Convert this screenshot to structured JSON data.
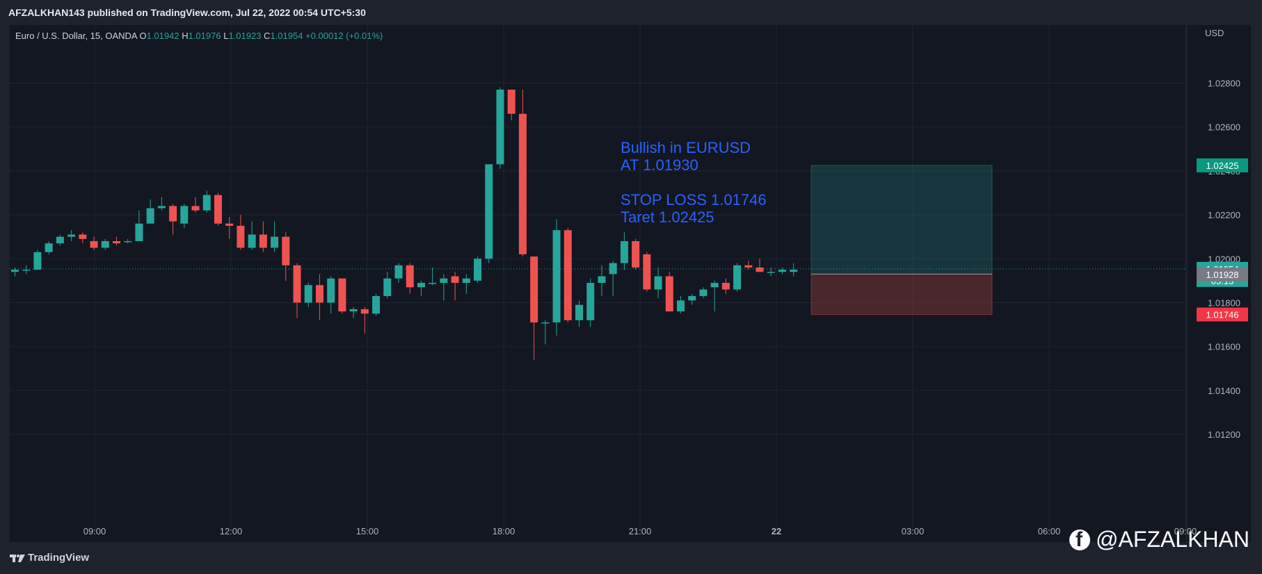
{
  "header": {
    "publisher": "AFZALKHAN143 published on TradingView.com, Jul 22, 2022 00:54 UTC+5:30"
  },
  "footer": {
    "brand": "TradingView"
  },
  "watermark": {
    "handle": "@AFZALKHAN"
  },
  "legend": {
    "symbol": "Euro / U.S. Dollar, 15, OANDA",
    "o_label": "O",
    "o_value": "1.01942",
    "h_label": "H",
    "h_value": "1.01976",
    "l_label": "L",
    "l_value": "1.01923",
    "c_label": "C",
    "c_value": "1.01954",
    "change": "+0.00012 (+0.01%)"
  },
  "annotation": [
    "Bullish in EURUSD",
    "AT 1.01930",
    "",
    "STOP LOSS 1.01746",
    "Taret 1.02425"
  ],
  "badges": [
    {
      "text": "1.02425",
      "price": 1.02425,
      "color": "#089981"
    },
    {
      "text": "1.01954",
      "sub": "05:13",
      "price": 1.01954,
      "color": "#26a69a"
    },
    {
      "text": "1.01928",
      "price": 1.01928,
      "color": "#787b86"
    },
    {
      "text": "1.01746",
      "price": 1.01746,
      "color": "#f23645"
    }
  ],
  "colors": {
    "up": "#26a69a",
    "down": "#ef5350",
    "grid": "#1f2430",
    "text": "#b2b5be",
    "annotation": "#2962ff"
  },
  "chart_data": {
    "type": "candlestick",
    "title": "Euro / U.S. Dollar, 15, OANDA",
    "currency": "USD",
    "ylim": [
      1.0108,
      1.0295
    ],
    "yticks": [
      "1.02800",
      "1.02600",
      "1.02400",
      "1.02200",
      "1.02000",
      "1.01800",
      "1.01600",
      "1.01400",
      "1.01200"
    ],
    "xticks": [
      "09:00",
      "12:00",
      "15:00",
      "18:00",
      "21:00",
      "22",
      "03:00",
      "06:00",
      "09:00"
    ],
    "position": {
      "entry": 1.0193,
      "stop": 1.01746,
      "target": 1.02425
    },
    "last_price": 1.01954,
    "candles": [
      [
        1.0194,
        1.0196,
        1.0192,
        1.0195
      ],
      [
        1.0195,
        1.0197,
        1.0193,
        1.0195
      ],
      [
        1.0195,
        1.0204,
        1.0195,
        1.0203
      ],
      [
        1.0203,
        1.0208,
        1.0202,
        1.0207
      ],
      [
        1.0207,
        1.0211,
        1.0206,
        1.021
      ],
      [
        1.021,
        1.0213,
        1.0208,
        1.0211
      ],
      [
        1.0211,
        1.0212,
        1.0207,
        1.0209
      ],
      [
        1.0208,
        1.021,
        1.0204,
        1.0205
      ],
      [
        1.0205,
        1.0209,
        1.0204,
        1.0208
      ],
      [
        1.0208,
        1.021,
        1.0206,
        1.0207
      ],
      [
        1.0208,
        1.0209,
        1.0207,
        1.0208
      ],
      [
        1.0208,
        1.0222,
        1.0208,
        1.0216
      ],
      [
        1.0216,
        1.0227,
        1.0216,
        1.0223
      ],
      [
        1.0223,
        1.0228,
        1.0222,
        1.0224
      ],
      [
        1.0224,
        1.0225,
        1.0211,
        1.0217
      ],
      [
        1.0216,
        1.0225,
        1.0214,
        1.0224
      ],
      [
        1.0224,
        1.0228,
        1.0221,
        1.0222
      ],
      [
        1.0222,
        1.0231,
        1.0221,
        1.0229
      ],
      [
        1.0229,
        1.023,
        1.0215,
        1.0216
      ],
      [
        1.0216,
        1.0219,
        1.0209,
        1.0215
      ],
      [
        1.0215,
        1.022,
        1.0204,
        1.0205
      ],
      [
        1.0205,
        1.0217,
        1.0204,
        1.0211
      ],
      [
        1.0211,
        1.0217,
        1.0203,
        1.0205
      ],
      [
        1.0205,
        1.0217,
        1.0203,
        1.021
      ],
      [
        1.021,
        1.0212,
        1.019,
        1.0197
      ],
      [
        1.0197,
        1.0198,
        1.0173,
        1.018
      ],
      [
        1.018,
        1.0189,
        1.0178,
        1.0188
      ],
      [
        1.0188,
        1.0193,
        1.0172,
        1.018
      ],
      [
        1.018,
        1.0192,
        1.0175,
        1.0191
      ],
      [
        1.0191,
        1.0191,
        1.0175,
        1.0176
      ],
      [
        1.0176,
        1.0178,
        1.0173,
        1.0177
      ],
      [
        1.0177,
        1.0178,
        1.0166,
        1.0175
      ],
      [
        1.0175,
        1.0184,
        1.0174,
        1.0183
      ],
      [
        1.0183,
        1.0194,
        1.0182,
        1.0191
      ],
      [
        1.0191,
        1.0198,
        1.0189,
        1.0197
      ],
      [
        1.0197,
        1.0198,
        1.0184,
        1.0187
      ],
      [
        1.0187,
        1.019,
        1.0183,
        1.0189
      ],
      [
        1.0189,
        1.0196,
        1.0188,
        1.0189
      ],
      [
        1.0189,
        1.0193,
        1.0181,
        1.0191
      ],
      [
        1.0192,
        1.0194,
        1.0181,
        1.0189
      ],
      [
        1.0189,
        1.0193,
        1.0184,
        1.0191
      ],
      [
        1.019,
        1.0201,
        1.0189,
        1.02
      ],
      [
        1.02,
        1.0243,
        1.0198,
        1.0243
      ],
      [
        1.0243,
        1.0278,
        1.0241,
        1.0277
      ],
      [
        1.0277,
        1.0277,
        1.0263,
        1.0266
      ],
      [
        1.0266,
        1.0277,
        1.0201,
        1.0202
      ],
      [
        1.0201,
        1.0201,
        1.0154,
        1.0171
      ],
      [
        1.0171,
        1.0172,
        1.0161,
        1.0171
      ],
      [
        1.0171,
        1.0218,
        1.0165,
        1.0213
      ],
      [
        1.0213,
        1.0214,
        1.0171,
        1.0172
      ],
      [
        1.0172,
        1.0181,
        1.0169,
        1.0179
      ],
      [
        1.0172,
        1.0191,
        1.0169,
        1.0189
      ],
      [
        1.0189,
        1.0197,
        1.0183,
        1.0192
      ],
      [
        1.0193,
        1.0199,
        1.0183,
        1.0198
      ],
      [
        1.0198,
        1.0212,
        1.0195,
        1.0208
      ],
      [
        1.0208,
        1.0209,
        1.0195,
        1.0196
      ],
      [
        1.0202,
        1.0203,
        1.0185,
        1.0186
      ],
      [
        1.0186,
        1.0196,
        1.0182,
        1.0192
      ],
      [
        1.0192,
        1.0194,
        1.0176,
        1.0176
      ],
      [
        1.0176,
        1.0183,
        1.0175,
        1.0181
      ],
      [
        1.0181,
        1.0184,
        1.0179,
        1.0183
      ],
      [
        1.0183,
        1.0187,
        1.0182,
        1.0186
      ],
      [
        1.0187,
        1.019,
        1.0176,
        1.0189
      ],
      [
        1.0189,
        1.0191,
        1.0184,
        1.0186
      ],
      [
        1.0186,
        1.0198,
        1.0185,
        1.0197
      ],
      [
        1.0197,
        1.0199,
        1.0195,
        1.0196
      ],
      [
        1.0196,
        1.02,
        1.0194,
        1.0194
      ],
      [
        1.0194,
        1.0196,
        1.0192,
        1.0194
      ],
      [
        1.0194,
        1.0196,
        1.0193,
        1.0195
      ],
      [
        1.0194,
        1.0198,
        1.0192,
        1.0195
      ]
    ]
  }
}
